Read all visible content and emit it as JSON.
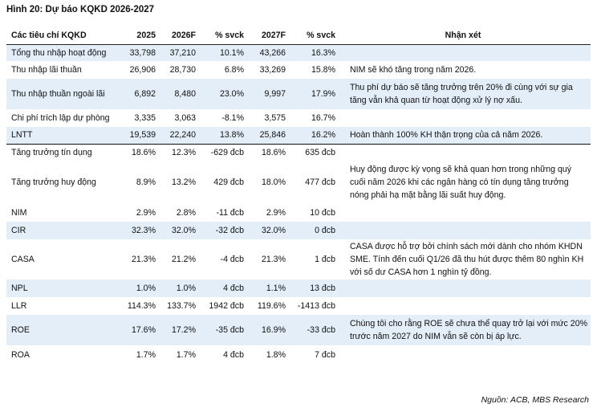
{
  "title": "Hình 20: Dự báo KQKD 2026-2027",
  "headers": [
    "Các tiêu chí KQKD",
    "2025",
    "2026F",
    "% svck",
    "2027F",
    "% svck",
    "Nhận xét"
  ],
  "rows": [
    {
      "name": "Tổng thu nhập hoạt động",
      "v2025": "33,798",
      "v2026": "37,210",
      "g2026": "10.1%",
      "v2027": "43,266",
      "g2027": "16.3%",
      "note": ""
    },
    {
      "name": "Thu nhập lãi thuần",
      "v2025": "26,906",
      "v2026": "28,730",
      "g2026": "6.8%",
      "v2027": "33,269",
      "g2027": "15.8%",
      "note": "NIM sẽ khó tăng trong năm 2026."
    },
    {
      "name": "Thu nhập thuần ngoài lãi",
      "v2025": "6,892",
      "v2026": "8,480",
      "g2026": "23.0%",
      "v2027": "9,997",
      "g2027": "17.9%",
      "note": "Thu phí dự báo sẽ tăng trưởng trên 20% đi cùng với sự gia tăng vẫn khả quan từ hoạt động xử lý nợ xấu."
    },
    {
      "name": "Chi phí trích lập dự phòng",
      "v2025": "3,335",
      "v2026": "3,063",
      "g2026": "-8.1%",
      "v2027": "3,575",
      "g2027": "16.7%",
      "note": ""
    },
    {
      "name": "LNTT",
      "v2025": "19,539",
      "v2026": "22,240",
      "g2026": "13.8%",
      "v2027": "25,846",
      "g2027": "16.2%",
      "note": "Hoàn thành 100% KH thận trọng của cả năm 2026."
    },
    {
      "name": "Tăng trưởng tín dụng",
      "v2025": "18.6%",
      "v2026": "12.3%",
      "g2026": "-629 đcb",
      "v2027": "18.6%",
      "g2027": "635 đcb",
      "note": ""
    },
    {
      "name": "Tăng trưởng huy động",
      "v2025": "8.9%",
      "v2026": "13.2%",
      "g2026": "429 đcb",
      "v2027": "18.0%",
      "g2027": "477 đcb",
      "note": "Huy động được kỳ vọng sẽ khả quan hơn trong những quý cuối năm 2026 khi các ngân hàng có tín dụng tăng trưởng nóng phải hạ mặt bằng lãi suất huy động."
    },
    {
      "name": "NIM",
      "v2025": "2.9%",
      "v2026": "2.8%",
      "g2026": "-11 đcb",
      "v2027": "2.9%",
      "g2027": "10 đcb",
      "note": ""
    },
    {
      "name": "CIR",
      "v2025": "32.3%",
      "v2026": "32.0%",
      "g2026": "-32 đcb",
      "v2027": "32.0%",
      "g2027": "0 đcb",
      "note": ""
    },
    {
      "name": "CASA",
      "v2025": "21.3%",
      "v2026": "21.2%",
      "g2026": "-4 đcb",
      "v2027": "21.3%",
      "g2027": "1 đcb",
      "note": "CASA được hỗ trợ bởi chính sách mới dành cho nhóm KHDN SME. Tính đến cuối Q1/26 đã thu hút được thêm 80 nghìn KH với số dư CASA hơn 1 nghìn tỷ đồng."
    },
    {
      "name": "NPL",
      "v2025": "1.0%",
      "v2026": "1.0%",
      "g2026": "4 đcb",
      "v2027": "1.1%",
      "g2027": "13 đcb",
      "note": ""
    },
    {
      "name": "LLR",
      "v2025": "114.3%",
      "v2026": "133.7%",
      "g2026": "1942 đcb",
      "v2027": "119.6%",
      "g2027": "-1413 đcb",
      "note": ""
    },
    {
      "name": "ROE",
      "v2025": "17.6%",
      "v2026": "17.2%",
      "g2026": "-35 đcb",
      "v2027": "16.9%",
      "g2027": "-33 đcb",
      "note": "Chúng tôi cho rằng ROE sẽ chưa thể quay trở lại với mức 20% trước năm 2027 do NIM vẫn sẽ còn bị áp lực."
    },
    {
      "name": "ROA",
      "v2025": "1.7%",
      "v2026": "1.7%",
      "g2026": "4 đcb",
      "v2027": "1.8%",
      "g2027": "7 đcb",
      "note": ""
    }
  ],
  "source": "Nguồn: ACB, MBS Research",
  "colors": {
    "shade": "#e3eef8"
  }
}
